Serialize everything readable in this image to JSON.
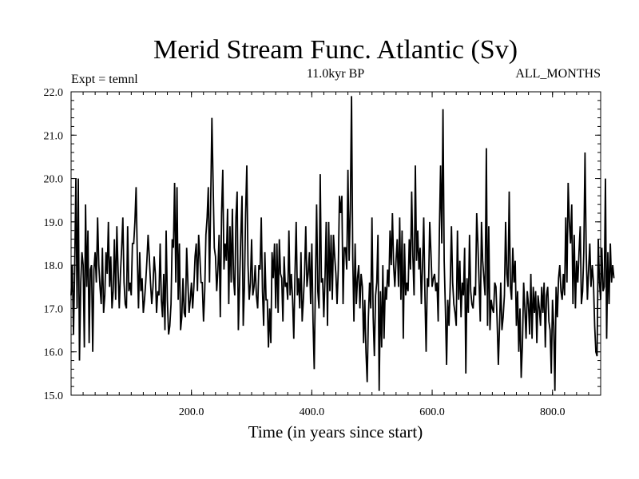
{
  "chart_data": {
    "type": "line",
    "title": "Merid Stream Func. Atlantic (Sv)",
    "subtitle": "11.0kyr BP",
    "left_annotation": "Expt = temnl",
    "right_annotation": "ALL_MONTHS",
    "xlabel": "Time (in years since start)",
    "ylabel": "",
    "xlim": [
      0,
      880
    ],
    "ylim": [
      15.0,
      22.0
    ],
    "x_ticks": [
      200,
      400,
      600,
      800
    ],
    "x_tick_labels": [
      "200.0",
      "400.0",
      "600.0",
      "800.0"
    ],
    "y_ticks": [
      15,
      16,
      17,
      18,
      19,
      20,
      21,
      22
    ],
    "y_tick_labels": [
      "15.0",
      "16.0",
      "17.0",
      "18.0",
      "19.0",
      "20.0",
      "21.0",
      "22.0"
    ],
    "x_step": 2,
    "grid": false,
    "line_color": "#000000",
    "values": [
      17.3,
      18.0,
      16.4,
      17.9,
      20.0,
      17.0,
      20.0,
      15.8,
      17.6,
      18.3,
      18.0,
      16.1,
      19.4,
      17.5,
      18.8,
      16.2,
      17.9,
      18.0,
      16.0,
      17.9,
      18.3,
      17.6,
      19.1,
      18.0,
      17.5,
      17.1,
      18.4,
      16.9,
      17.3,
      18.3,
      17.8,
      19.0,
      17.5,
      18.2,
      17.0,
      17.4,
      18.6,
      17.2,
      18.9,
      17.9,
      17.0,
      17.8,
      18.4,
      19.1,
      17.6,
      17.1,
      17.0,
      18.9,
      17.4,
      17.6,
      17.3,
      18.5,
      18.5,
      19.0,
      19.8,
      18.2,
      17.0,
      18.3,
      17.4,
      17.7,
      16.9,
      17.2,
      17.6,
      18.1,
      18.7,
      18.2,
      17.6,
      17.1,
      17.5,
      18.2,
      17.8,
      16.9,
      17.4,
      17.3,
      18.5,
      17.2,
      16.8,
      17.8,
      16.5,
      18.8,
      17.2,
      16.4,
      16.6,
      17.1,
      18.6,
      18.4,
      19.9,
      17.6,
      19.8,
      17.2,
      18.5,
      16.5,
      16.8,
      17.7,
      16.9,
      16.8,
      18.4,
      17.6,
      16.9,
      17.2,
      17.6,
      17.0,
      17.5,
      18.2,
      18.5,
      17.4,
      18.7,
      18.2,
      17.6,
      17.6,
      16.7,
      17.4,
      18.7,
      19.1,
      19.8,
      17.6,
      19.5,
      21.4,
      19.9,
      18.4,
      18.2,
      17.4,
      17.9,
      18.7,
      16.8,
      19.2,
      20.2,
      17.9,
      18.5,
      18.1,
      19.3,
      17.1,
      18.9,
      17.6,
      19.3,
      17.7,
      17.3,
      19.1,
      19.7,
      16.5,
      17.6,
      18.7,
      19.6,
      16.6,
      17.5,
      19.2,
      20.3,
      18.0,
      17.2,
      17.6,
      18.6,
      17.3,
      17.5,
      18.0,
      17.3,
      17.0,
      18.0,
      17.9,
      19.1,
      17.4,
      16.6,
      18.3,
      17.2,
      17.2,
      16.1,
      17.0,
      16.2,
      18.3,
      17.7,
      18.5,
      17.0,
      18.5,
      16.9,
      18.6,
      17.8,
      17.7,
      16.7,
      18.2,
      17.5,
      17.6,
      17.2,
      18.8,
      17.3,
      17.8,
      17.2,
      16.3,
      17.8,
      19.0,
      17.3,
      17.7,
      17.0,
      18.3,
      16.7,
      17.2,
      17.8,
      18.9,
      17.5,
      17.8,
      18.3,
      17.1,
      18.5,
      16.7,
      15.6,
      17.6,
      19.4,
      17.4,
      17.0,
      20.1,
      17.6,
      17.7,
      16.8,
      17.7,
      19.0,
      16.6,
      19.0,
      17.4,
      18.7,
      17.2,
      18.7,
      18.2,
      17.8,
      17.1,
      17.9,
      19.6,
      19.2,
      19.6,
      17.1,
      18.4,
      18.4,
      17.9,
      20.2,
      18.1,
      19.3,
      21.9,
      18.2,
      16.7,
      18.5,
      17.1,
      17.7,
      18.0,
      17.0,
      17.8,
      17.5,
      16.2,
      17.2,
      16.0,
      15.3,
      16.8,
      17.6,
      17.0,
      19.1,
      16.8,
      15.9,
      17.3,
      17.6,
      18.7,
      15.1,
      17.4,
      16.1,
      18.0,
      16.3,
      17.5,
      17.2,
      17.9,
      17.5,
      18.8,
      18.0,
      19.2,
      18.0,
      17.5,
      18.1,
      18.6,
      17.5,
      19.1,
      17.2,
      18.8,
      16.3,
      18.5,
      17.3,
      17.6,
      17.4,
      18.6,
      17.9,
      19.7,
      18.2,
      17.3,
      20.3,
      18.1,
      18.8,
      17.9,
      18.4,
      17.1,
      18.0,
      19.1,
      17.3,
      16.0,
      17.7,
      17.5,
      19.0,
      18.3,
      17.5,
      17.7,
      17.8,
      17.4,
      17.6,
      16.7,
      18.8,
      20.3,
      18.5,
      21.6,
      18.1,
      17.0,
      15.7,
      17.2,
      16.6,
      17.5,
      18.9,
      17.6,
      17.1,
      16.9,
      16.6,
      18.8,
      17.2,
      18.1,
      16.8,
      17.6,
      17.3,
      18.4,
      15.5,
      17.7,
      16.9,
      18.7,
      17.4,
      17.1,
      17.0,
      17.5,
      17.3,
      19.2,
      18.5,
      17.6,
      16.7,
      19.0,
      18.1,
      17.7,
      17.3,
      20.7,
      16.6,
      18.9,
      16.5,
      17.2,
      17.0,
      16.9,
      17.6,
      17.5,
      16.7,
      15.7,
      16.6,
      17.6,
      16.5,
      16.8,
      17.3,
      19.0,
      17.8,
      17.5,
      19.7,
      17.5,
      17.2,
      18.4,
      17.6,
      18.1,
      16.6,
      17.4,
      16.0,
      17.0,
      15.4,
      16.2,
      17.6,
      17.0,
      16.3,
      17.4,
      17.1,
      16.4,
      17.8,
      16.3,
      17.5,
      16.9,
      17.4,
      16.2,
      17.3,
      17.0,
      16.6,
      17.5,
      16.9,
      17.6,
      16.1,
      17.3,
      17.5,
      16.7,
      16.5,
      15.5,
      17.2,
      16.6,
      15.1,
      17.5,
      16.8,
      17.7,
      18.0,
      17.4,
      17.2,
      17.8,
      17.3,
      19.1,
      17.6,
      19.9,
      19.0,
      18.5,
      19.4,
      17.1,
      18.7,
      17.0,
      18.1,
      17.6,
      18.3,
      18.9,
      17.1,
      17.4,
      18.3,
      20.6,
      18.3,
      17.2,
      17.9,
      18.5,
      17.5,
      18.0,
      17.6,
      16.6,
      16.0,
      15.9,
      18.6,
      17.6,
      17.2,
      18.4,
      17.4,
      17.5,
      20.0,
      16.3,
      18.3,
      17.1,
      18.5,
      17.6,
      18.0,
      17.7
    ]
  }
}
